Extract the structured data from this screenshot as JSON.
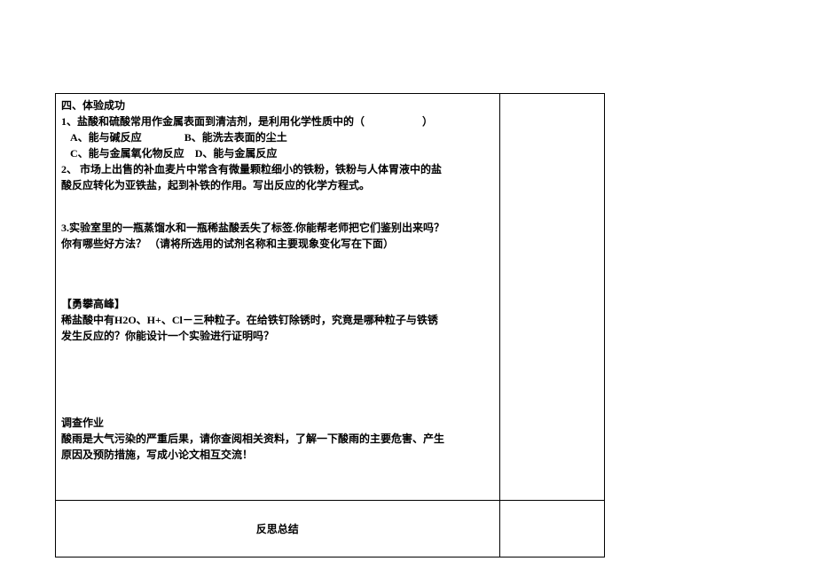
{
  "section1": {
    "title": "四、体验成功",
    "q1_stem": "1、盐酸和硫酸常用作金属表面到清洁剂，是利用化学性质中的（",
    "q1_paren": "　　　　　）",
    "q1_optA": "A、能与碱反应",
    "q1_optB": "B、能洗去表面的尘土",
    "q1_optC": "C、能与金属氧化物反应",
    "q1_optD": "D、能与金属反应",
    "q2_line1": "2、 市场上出售的补血麦片中常含有微量颗粒细小的铁粉，铁粉与人体胃液中的盐",
    "q2_line2": "酸反应转化为亚铁盐，起到补铁的作用。写出反应的化学方程式。",
    "q3_line1": "3.实验室里的一瓶蒸馏水和一瓶稀盐酸丢失了标签.你能帮老师把它们鉴别出来吗？",
    "q3_line2": "你有哪些好方法？ （请将所选用的试剂名称和主要现象变化写在下面）"
  },
  "section2": {
    "title": "【勇攀高峰】",
    "line1": "稀盐酸中有H2O、H+、Cl－三种粒子。在给铁钉除锈时，究竟是哪种粒子与铁锈",
    "line2": "发生反应的？你能设计一个实验进行证明吗？"
  },
  "section3": {
    "title": "调查作业",
    "line1": "酸雨是大气污染的严重后果，请你查阅相关资料，了解一下酸雨的主要危害、产生",
    "line2": "原因及预防措施，写成小论文相互交流！"
  },
  "footer": {
    "label": "反思总结"
  }
}
